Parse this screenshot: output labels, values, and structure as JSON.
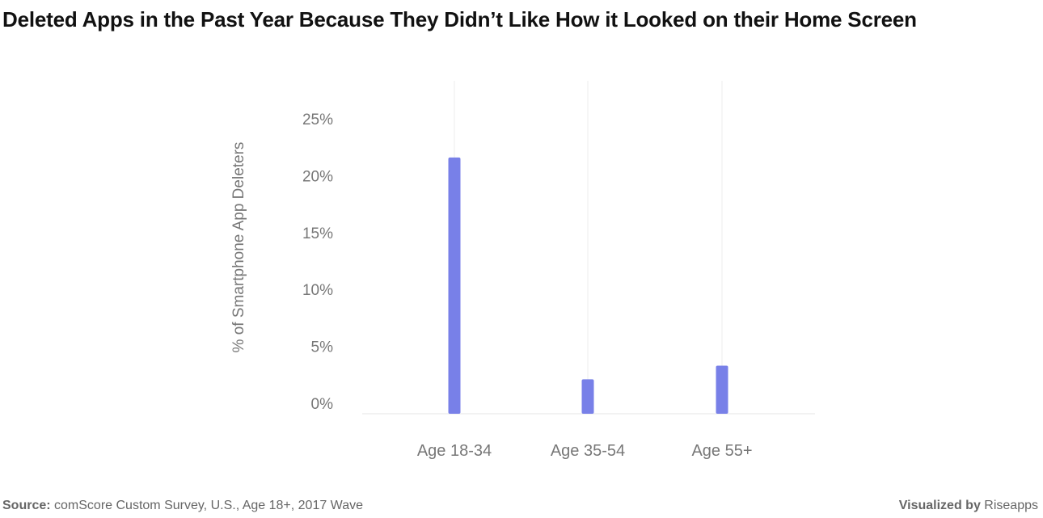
{
  "chart_data": {
    "type": "bar",
    "title": "Deleted Apps in the Past Year Because They Didn’t Like How it Looked on their Home Screen",
    "xlabel": "",
    "ylabel": "% of Smartphone App Deleters",
    "categories": [
      "Age 18-34",
      "Age 35-54",
      "Age 55+"
    ],
    "values": [
      21.6,
      2.1,
      3.3
    ],
    "ylim": [
      0,
      25
    ],
    "yticks": [
      0,
      5,
      10,
      15,
      20,
      25
    ],
    "ytick_labels": [
      "0%",
      "5%",
      "10%",
      "15%",
      "20%",
      "25%"
    ],
    "grid": "vertical",
    "bar_color": "#7880e8"
  },
  "footer": {
    "source_label": "Source:",
    "source_text": "comScore Custom Survey, U.S., Age 18+, 2017 Wave",
    "credit_label": "Visualized by",
    "credit_text": "Riseapps"
  }
}
